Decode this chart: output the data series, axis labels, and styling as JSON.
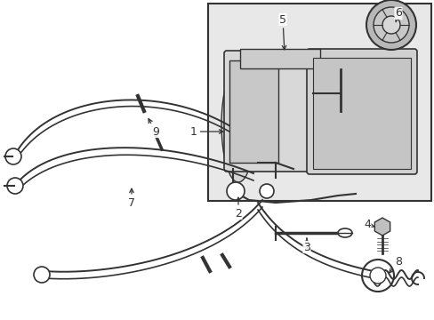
{
  "bg_color": "#ffffff",
  "line_color": "#333333",
  "box_bg": "#e0e0e0",
  "figsize": [
    4.89,
    3.6
  ],
  "dpi": 100
}
